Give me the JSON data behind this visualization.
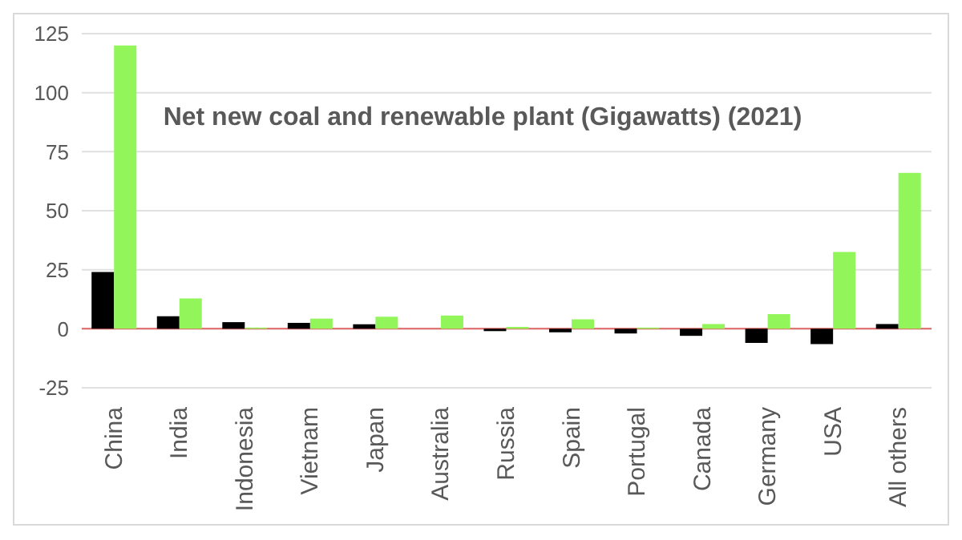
{
  "chart_data": {
    "type": "bar",
    "title": "Net new coal and renewable plant (Gigawatts) (2021)",
    "categories": [
      "China",
      "India",
      "Indonesia",
      "Vietnam",
      "Japan",
      "Australia",
      "Russia",
      "Spain",
      "Portugal",
      "Canada",
      "Germany",
      "USA",
      "All others"
    ],
    "series": [
      {
        "color": "#000000",
        "values": [
          24,
          5.3,
          2.8,
          2.5,
          1.9,
          0,
          -1,
          -1.5,
          -2,
          -3,
          -6,
          -6.5,
          2
        ]
      },
      {
        "color": "#92f55a",
        "values": [
          120,
          12.8,
          0.5,
          4.3,
          5.1,
          5.6,
          0.8,
          4,
          0.5,
          2,
          6.2,
          32.5,
          66
        ]
      }
    ],
    "ylim": [
      -25,
      125
    ],
    "yticks": [
      -25,
      0,
      25,
      50,
      75,
      100,
      125
    ],
    "grid": "y",
    "legend": false,
    "ref_lines": [
      {
        "axis": "y",
        "value": 0,
        "color": "#e06666"
      }
    ]
  }
}
